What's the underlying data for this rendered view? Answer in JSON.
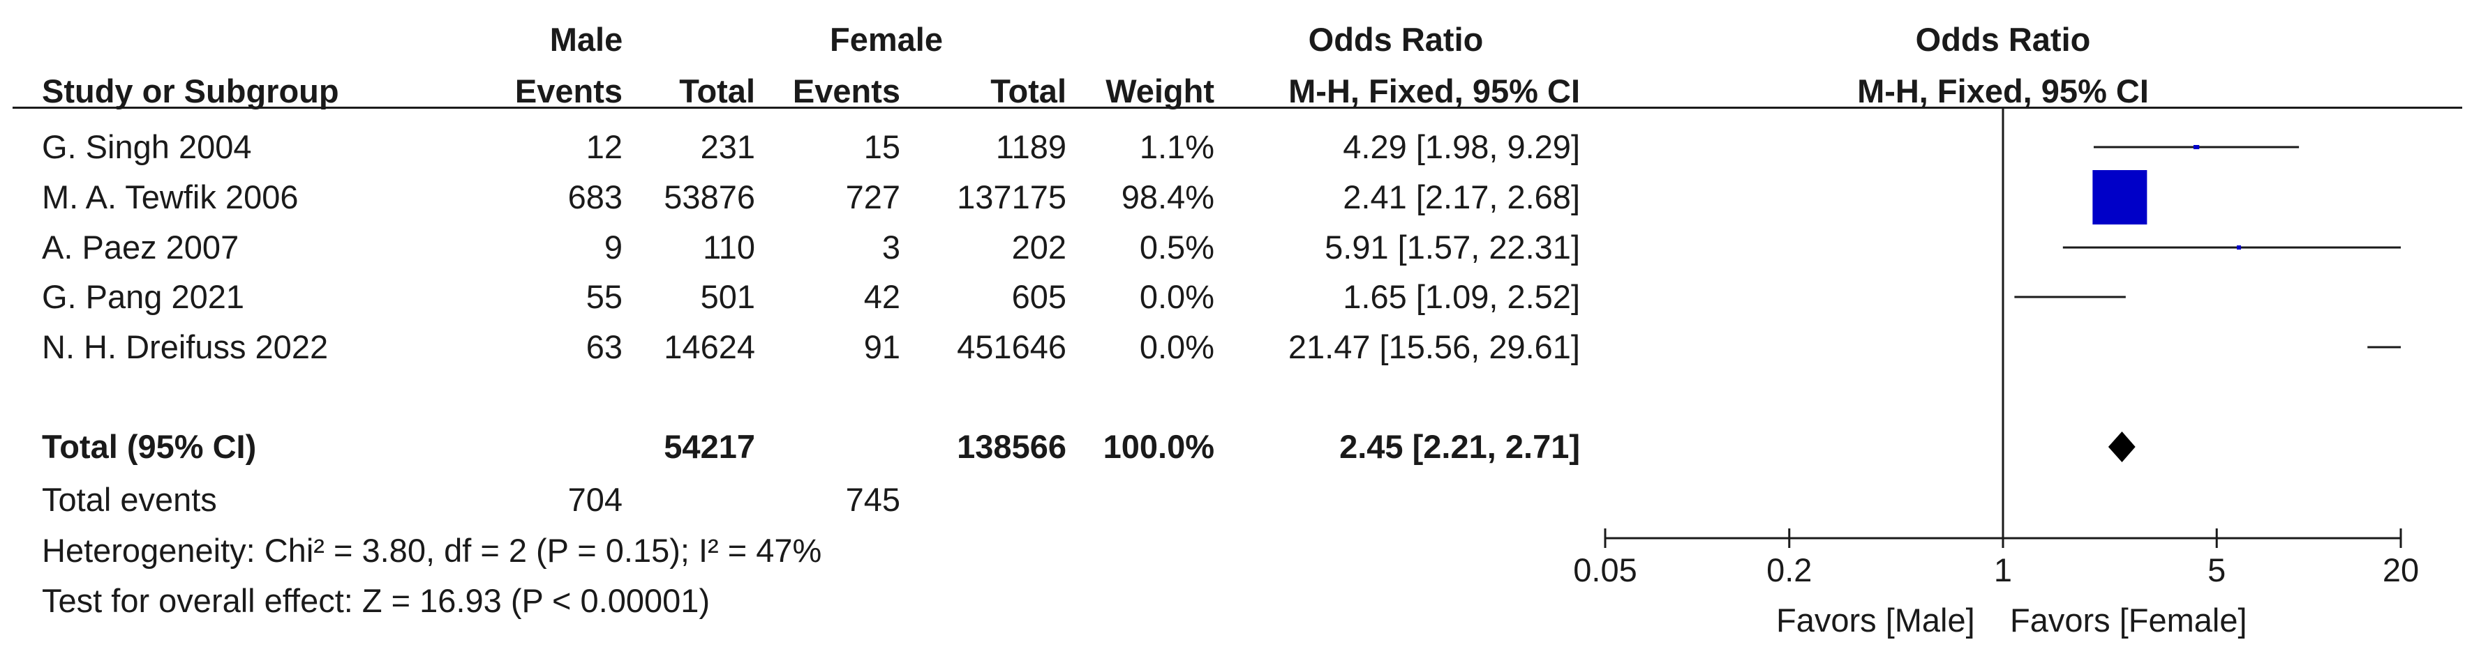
{
  "headers": {
    "group1": "Male",
    "group2": "Female",
    "or_title": "Odds Ratio",
    "plot_title": "Odds Ratio",
    "study_col": "Study or Subgroup",
    "events1": "Events",
    "total1": "Total",
    "events2": "Events",
    "total2": "Total",
    "weight": "Weight",
    "method": "M-H, Fixed, 95% CI",
    "plot_method": "M-H, Fixed, 95% CI"
  },
  "studies": [
    {
      "name": "G. Singh 2004",
      "events1": "12",
      "total1": "231",
      "events2": "15",
      "total2": "1189",
      "weight": "1.1%",
      "ci_text": "4.29 [1.98, 9.29]"
    },
    {
      "name": "M. A. Tewfik 2006",
      "events1": "683",
      "total1": "53876",
      "events2": "727",
      "total2": "137175",
      "weight": "98.4%",
      "ci_text": "2.41 [2.17, 2.68]"
    },
    {
      "name": "A. Paez 2007",
      "events1": "9",
      "total1": "110",
      "events2": "3",
      "total2": "202",
      "weight": "0.5%",
      "ci_text": "5.91 [1.57, 22.31]"
    },
    {
      "name": "G. Pang 2021",
      "events1": "55",
      "total1": "501",
      "events2": "42",
      "total2": "605",
      "weight": "0.0%",
      "ci_text": "1.65 [1.09, 2.52]"
    },
    {
      "name": "N. H. Dreifuss 2022",
      "events1": "63",
      "total1": "14624",
      "events2": "91",
      "total2": "451646",
      "weight": "0.0%",
      "ci_text": "21.47 [15.56, 29.61]"
    }
  ],
  "total": {
    "label": "Total (95% CI)",
    "total1": "54217",
    "total2": "138566",
    "weight": "100.0%",
    "ci_text": "2.45 [2.21, 2.71]"
  },
  "total_events": {
    "label": "Total events",
    "events1": "704",
    "events2": "745"
  },
  "heterogeneity": "Heterogeneity: Chi² = 3.80, df = 2 (P = 0.15); I² = 47%",
  "overall_effect": "Test for overall effect: Z = 16.93 (P < 0.00001)",
  "favors_left": "Favors [Male]",
  "favors_right": "Favors [Female]",
  "colors": {
    "square": "#0000c8",
    "ci_line": "#1a1a1a",
    "diamond": "#000000"
  },
  "chart_data": {
    "type": "forest",
    "title": "Odds Ratio",
    "subtitle": "M-H, Fixed, 95% CI",
    "x_scale": "log",
    "xlim": [
      0.05,
      20
    ],
    "ticks": [
      0.05,
      0.2,
      1,
      5,
      20
    ],
    "tick_labels": [
      "0.05",
      "0.2",
      "1",
      "5",
      "20"
    ],
    "null_line": 1,
    "studies": [
      {
        "name": "G. Singh 2004",
        "or": 4.29,
        "lo": 1.98,
        "hi": 9.29,
        "weight": 1.1
      },
      {
        "name": "M. A. Tewfik 2006",
        "or": 2.41,
        "lo": 2.17,
        "hi": 2.68,
        "weight": 98.4
      },
      {
        "name": "A. Paez 2007",
        "or": 5.91,
        "lo": 1.57,
        "hi": 22.31,
        "weight": 0.5
      },
      {
        "name": "G. Pang 2021",
        "or": 1.65,
        "lo": 1.09,
        "hi": 2.52,
        "weight": 0.0
      },
      {
        "name": "N. H. Dreifuss 2022",
        "or": 21.47,
        "lo": 15.56,
        "hi": 29.61,
        "weight": 0.0
      }
    ],
    "pooled": {
      "or": 2.45,
      "lo": 2.21,
      "hi": 2.71
    }
  }
}
